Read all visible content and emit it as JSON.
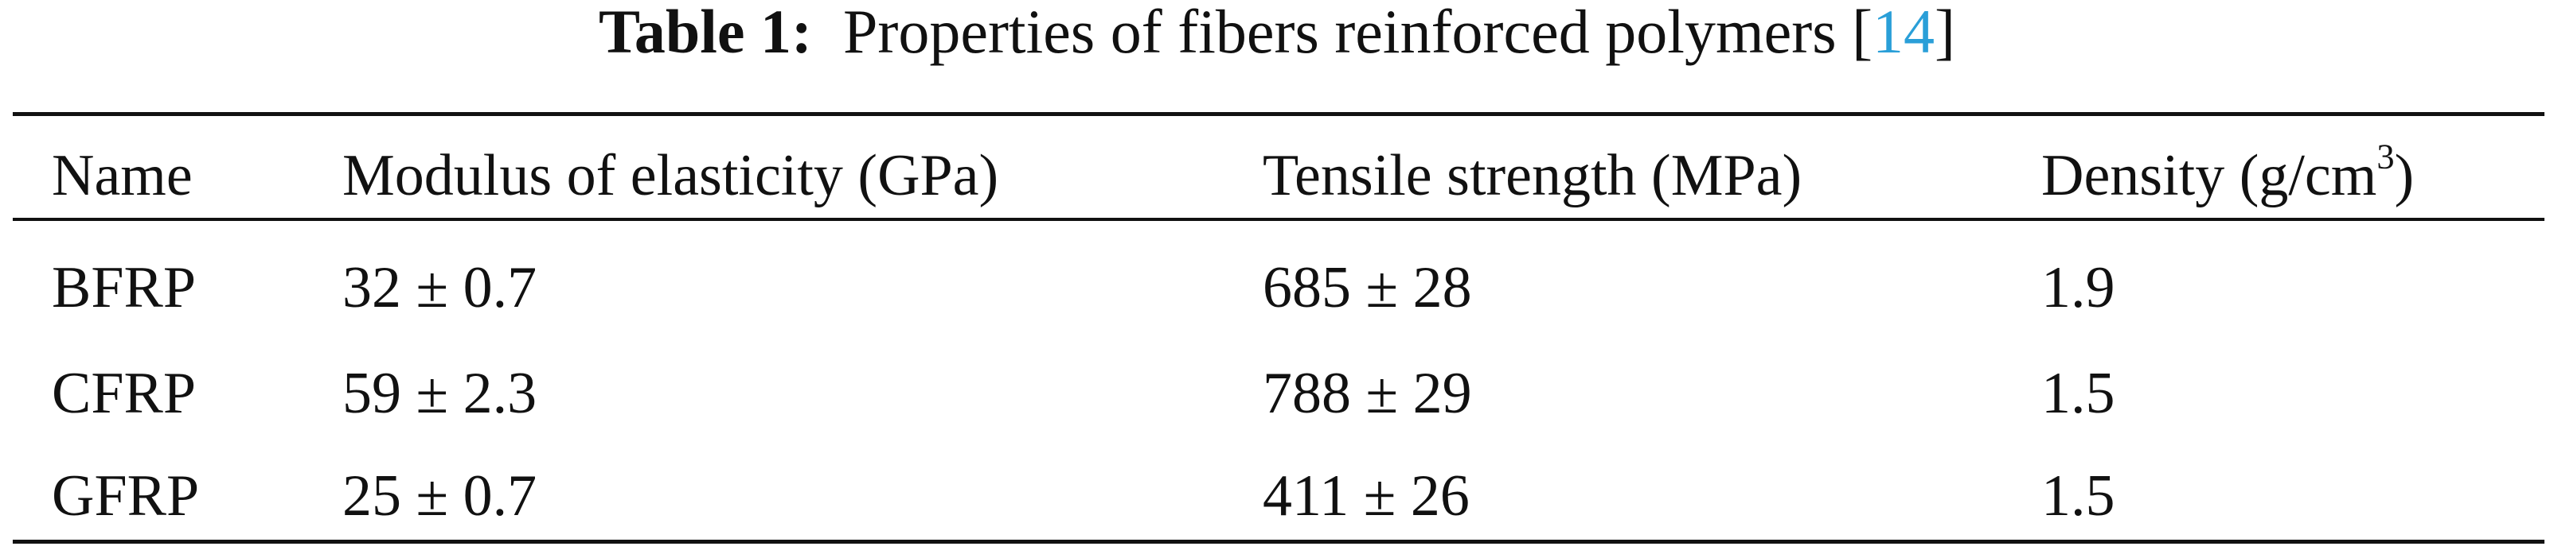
{
  "caption": {
    "label": "Table 1:",
    "text": "Properties of fibers reinforced polymers [",
    "ref": "14",
    "close": "]"
  },
  "table": {
    "header": [
      "Name",
      "Modulus of elasticity (GPa)",
      "Tensile strength (MPa)",
      {
        "text": "Density (g/cm",
        "sup": "3",
        "close": ")"
      }
    ],
    "rows": [
      [
        "BFRP",
        "32 ± 0.7",
        "685 ± 28",
        "1.9"
      ],
      [
        "CFRP",
        "59 ± 2.3",
        "788 ± 29",
        "1.5"
      ],
      [
        "GFRP",
        "25 ± 0.7",
        "411 ± 26",
        "1.5"
      ]
    ]
  }
}
